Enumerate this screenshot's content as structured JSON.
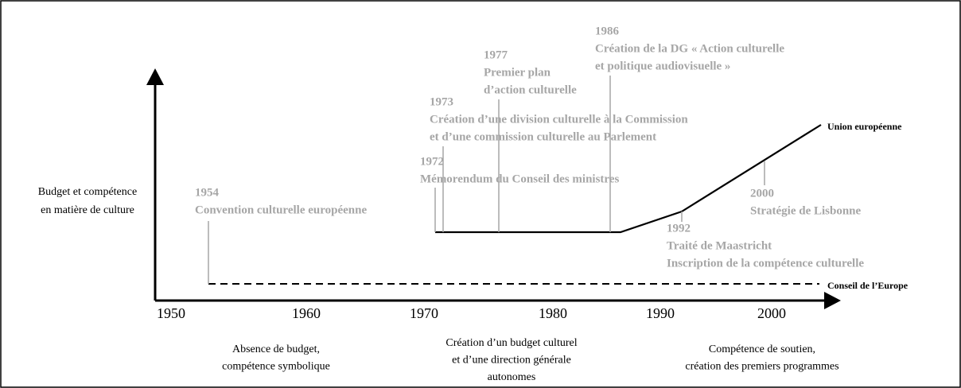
{
  "y_axis_label": [
    "Budget et compétence",
    "en matière de culture"
  ],
  "x_axis": {
    "ticks": [
      "1950",
      "1960",
      "1970",
      "1980",
      "1990",
      "2000"
    ]
  },
  "events": [
    {
      "year": "1954",
      "lines": [
        "Convention culturelle européenne"
      ]
    },
    {
      "year": "1972",
      "lines": [
        "Mémorendum du Conseil des ministres"
      ]
    },
    {
      "year": "1973",
      "lines": [
        "Création d’une division culturelle à la Commission",
        "et d’une commission culturelle au Parlement"
      ]
    },
    {
      "year": "1977",
      "lines": [
        "Premier plan",
        "d’action culturelle"
      ]
    },
    {
      "year": "1986",
      "lines": [
        "Création de la DG « Action culturelle",
        "et politique audiovisuelle »"
      ]
    },
    {
      "year": "1992",
      "lines": [
        "Traité de Maastricht",
        "Inscription de la compétence culturelle"
      ]
    },
    {
      "year": "2000",
      "lines": [
        "Stratégie de Lisbonne"
      ]
    }
  ],
  "lines": [
    {
      "name": "Union européenne"
    },
    {
      "name": "Conseil de l’Europe"
    }
  ],
  "phases": [
    {
      "lines": [
        "Absence de budget,",
        "compétence symbolique"
      ]
    },
    {
      "lines": [
        "Création d’un budget culturel",
        "et d’une direction générale",
        "autonomes"
      ]
    },
    {
      "lines": [
        "Compétence de soutien,",
        "création des premiers programmes"
      ]
    }
  ]
}
